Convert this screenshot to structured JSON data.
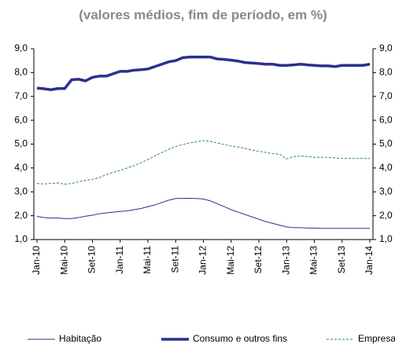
{
  "chart_data": {
    "type": "line",
    "subtitle": "(valores médios, fim de período, em %)",
    "categories": [
      "Jan-10",
      null,
      null,
      null,
      "Mai-10",
      null,
      null,
      null,
      "Set-10",
      null,
      null,
      null,
      "Jan-11",
      null,
      null,
      null,
      "Mai-11",
      null,
      null,
      null,
      "Set-11",
      null,
      null,
      null,
      "Jan-12",
      null,
      null,
      null,
      "Mai-12",
      null,
      null,
      null,
      "Set-12",
      null,
      null,
      null,
      "Jan-13",
      null,
      null,
      null,
      "Mai-13",
      null,
      null,
      null,
      "Set-13",
      null,
      null,
      null,
      "Jan-14"
    ],
    "series": [
      {
        "name": "Habitação",
        "color": "#2b2f8f",
        "width": 1,
        "dash": false,
        "values": [
          1.97,
          1.92,
          1.9,
          1.9,
          1.88,
          1.88,
          1.92,
          1.98,
          2.02,
          2.08,
          2.12,
          2.15,
          2.18,
          2.2,
          2.25,
          2.3,
          2.38,
          2.45,
          2.55,
          2.65,
          2.72,
          2.73,
          2.73,
          2.72,
          2.7,
          2.62,
          2.5,
          2.38,
          2.25,
          2.15,
          2.05,
          1.95,
          1.85,
          1.75,
          1.68,
          1.6,
          1.53,
          1.5,
          1.5,
          1.48,
          1.48,
          1.47,
          1.47,
          1.47,
          1.47,
          1.47,
          1.47,
          1.47,
          1.47
        ]
      },
      {
        "name": "Consumo e outros fins",
        "color": "#2b2f8f",
        "width": 3.5,
        "dash": false,
        "values": [
          7.35,
          7.32,
          7.28,
          7.33,
          7.33,
          7.7,
          7.72,
          7.65,
          7.8,
          7.85,
          7.85,
          7.95,
          8.05,
          8.05,
          8.1,
          8.12,
          8.15,
          8.25,
          8.35,
          8.45,
          8.5,
          8.62,
          8.65,
          8.65,
          8.65,
          8.65,
          8.57,
          8.55,
          8.52,
          8.48,
          8.42,
          8.4,
          8.38,
          8.35,
          8.35,
          8.3,
          8.3,
          8.32,
          8.35,
          8.32,
          8.3,
          8.28,
          8.28,
          8.25,
          8.3,
          8.3,
          8.3,
          8.3,
          8.35
        ]
      },
      {
        "name": "Empresas",
        "color": "#2e8b3e",
        "width": 1,
        "dash": true,
        "values": [
          3.35,
          3.33,
          3.35,
          3.37,
          3.32,
          3.35,
          3.42,
          3.48,
          3.52,
          3.6,
          3.72,
          3.82,
          3.9,
          4.0,
          4.1,
          4.22,
          4.35,
          4.5,
          4.65,
          4.78,
          4.9,
          4.98,
          5.05,
          5.1,
          5.15,
          5.12,
          5.05,
          4.98,
          4.92,
          4.88,
          4.82,
          4.75,
          4.7,
          4.65,
          4.6,
          4.58,
          4.38,
          4.48,
          4.5,
          4.48,
          4.45,
          4.45,
          4.45,
          4.42,
          4.4,
          4.4,
          4.4,
          4.4,
          4.4
        ]
      }
    ],
    "ylim": [
      1,
      9
    ],
    "yticks": [
      {
        "value": 1,
        "label": "1,0"
      },
      {
        "value": 2,
        "label": "2,0"
      },
      {
        "value": 3,
        "label": "3,0"
      },
      {
        "value": 4,
        "label": "4,0"
      },
      {
        "value": 5,
        "label": "5,0"
      },
      {
        "value": 6,
        "label": "6,0"
      },
      {
        "value": 7,
        "label": "7,0"
      },
      {
        "value": 8,
        "label": "8,0"
      },
      {
        "value": 9,
        "label": "9,0"
      }
    ],
    "y2lim": [
      1,
      9
    ],
    "y2ticks": [
      {
        "value": 1,
        "label": "1,0"
      },
      {
        "value": 2,
        "label": "2,0"
      },
      {
        "value": 3,
        "label": "3,0"
      },
      {
        "value": 4,
        "label": "4,0"
      },
      {
        "value": 5,
        "label": "5,0"
      },
      {
        "value": 6,
        "label": "6,0"
      },
      {
        "value": 7,
        "label": "7,0"
      },
      {
        "value": 8,
        "label": "8,0"
      },
      {
        "value": 9,
        "label": "9,0"
      }
    ],
    "legend": "bottom"
  }
}
